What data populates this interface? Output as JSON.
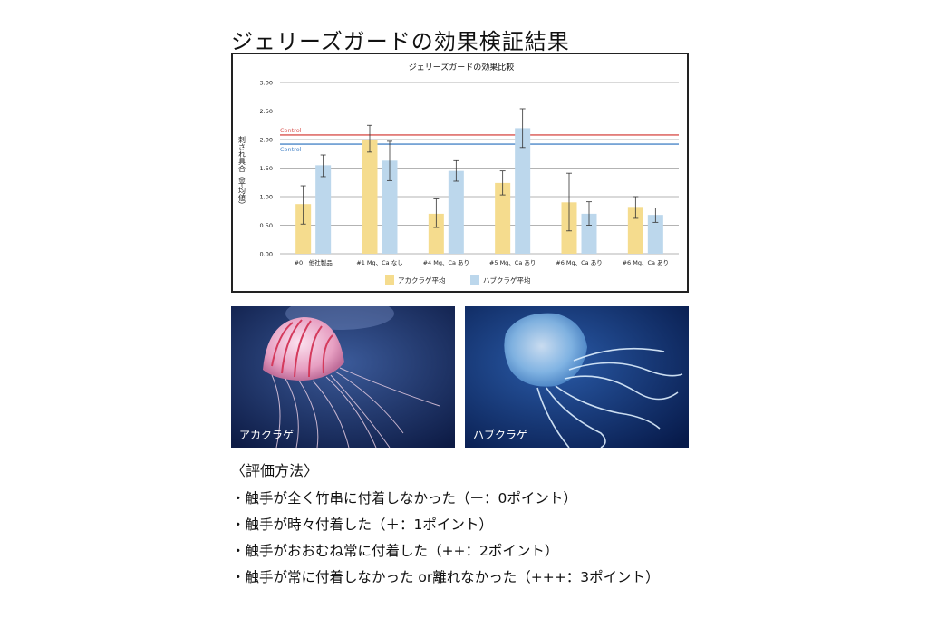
{
  "page_title": "ジェリーズガードの効果検証結果",
  "chart_data": {
    "type": "bar",
    "title": "ジェリーズガードの効果比較",
    "ylabel": "刺され具合（平均値）",
    "ylim": [
      0,
      3
    ],
    "yticks": [
      "0.00",
      "0.50",
      "1.00",
      "1.50",
      "2.00",
      "2.50",
      "3.00"
    ],
    "categories": [
      "#0　他社製品",
      "#1 Mg、Ca なし",
      "#4 Mg、Ca あり",
      "#5 Mg、Ca あり",
      "#6 Mg、Ca あり",
      "#6 Mg、Ca あり"
    ],
    "series": [
      {
        "name": "アカクラゲ平均",
        "color": "#f5dc8e",
        "values": [
          0.87,
          2.0,
          0.7,
          1.24,
          0.9,
          0.82
        ],
        "err_low": [
          0.52,
          1.78,
          0.46,
          1.03,
          0.4,
          0.62
        ],
        "err_high": [
          1.19,
          2.25,
          0.96,
          1.45,
          1.41,
          1.0
        ]
      },
      {
        "name": "ハブクラゲ平均",
        "color": "#bcd7ec",
        "values": [
          1.55,
          1.63,
          1.45,
          2.2,
          0.7,
          0.68
        ],
        "err_low": [
          1.35,
          1.28,
          1.27,
          1.86,
          0.5,
          0.55
        ],
        "err_high": [
          1.73,
          1.97,
          1.63,
          2.54,
          0.91,
          0.8
        ]
      }
    ],
    "reference_lines": [
      {
        "label": "Control",
        "value": 2.08,
        "color": "#d9534f"
      },
      {
        "label": "Control",
        "value": 1.92,
        "color": "#4a86c8"
      }
    ],
    "legend_position": "bottom",
    "grid": true
  },
  "photos": {
    "left_caption": "アカクラゲ",
    "right_caption": "ハブクラゲ"
  },
  "method": {
    "title": "〈評価方法〉",
    "items": [
      "・触手が全く竹串に付着しなかった（ー：0ポイント）",
      "・触手が時々付着した（＋：1ポイント）",
      "・触手がおおむね常に付着した（++：2ポイント）",
      "・触手が常に付着しなかった or離れなかった（+++：3ポイント）"
    ]
  }
}
